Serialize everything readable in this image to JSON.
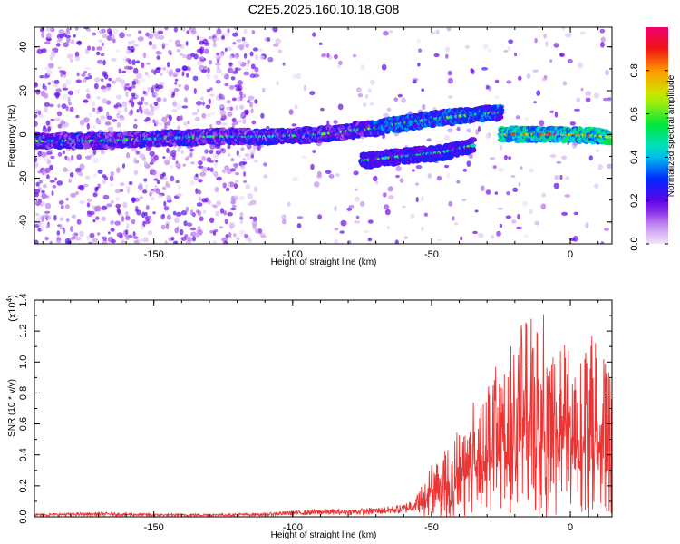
{
  "title": "C2E5.2025.160.10.18.G08",
  "chart_data": [
    {
      "type": "heatmap",
      "xlabel": "Height of straight line (km)",
      "ylabel": "Frequency (Hz)",
      "xlim": [
        -193,
        15
      ],
      "ylim": [
        -50,
        49
      ],
      "x_ticks": [
        -150,
        -100,
        -50,
        0
      ],
      "y_ticks": [
        -40,
        -20,
        0,
        20,
        40
      ],
      "colorbar": {
        "label": "Normalized spectral amplitude",
        "range": [
          0,
          1
        ],
        "ticks": [
          0.0,
          0.2,
          0.4,
          0.6,
          0.8
        ],
        "tick_labels": [
          "0.0",
          "0.2",
          "0.4",
          "0.6",
          "0.8"
        ]
      },
      "ridges": [
        {
          "x": [
            -193,
            -170,
            -150,
            -130,
            -110,
            -90,
            -70,
            -50,
            -35,
            -25
          ],
          "y": [
            -3,
            -3,
            -2,
            -1,
            -1,
            0,
            3,
            7,
            9,
            10
          ]
        },
        {
          "x": [
            -25,
            -15,
            -5,
            0,
            14
          ],
          "y": [
            0,
            0,
            0,
            0,
            -1
          ]
        },
        {
          "x": [
            -75,
            -60,
            -45,
            -35
          ],
          "y": [
            -12,
            -10,
            -8,
            -5
          ]
        }
      ]
    },
    {
      "type": "line",
      "xlabel": "Height of straight line (km)",
      "ylabel": "SNR (10 * v/v)",
      "xlim": [
        -193,
        15
      ],
      "ylim": [
        0,
        1.4
      ],
      "y_multiplier": "(x10^4)",
      "x_ticks": [
        -150,
        -100,
        -50,
        0
      ],
      "y_ticks": [
        0.0,
        0.2,
        0.4,
        0.6,
        0.8,
        1.0,
        1.2,
        1.4
      ],
      "color": "#ee3333",
      "series": [
        {
          "envelope": {
            "x": [
              -193,
              -170,
              -150,
              -130,
              -110,
              -100,
              -90,
              -80,
              -70,
              -60,
              -55,
              -50,
              -45,
              -40,
              -35,
              -30,
              -25,
              -20,
              -15,
              -10,
              -5,
              0,
              5,
              10,
              14
            ],
            "y": [
              0.02,
              0.03,
              0.02,
              0.02,
              0.025,
              0.04,
              0.05,
              0.05,
              0.06,
              0.08,
              0.15,
              0.35,
              0.45,
              0.6,
              0.75,
              0.85,
              1.05,
              1.2,
              1.3,
              1.35,
              1.2,
              1.1,
              1.15,
              1.2,
              0.95
            ]
          }
        }
      ]
    }
  ]
}
